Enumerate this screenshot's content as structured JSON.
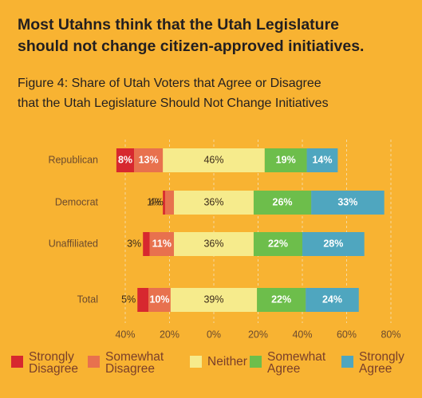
{
  "chart_data": {
    "type": "diverging-bar",
    "title": "Most Utahns think that the Utah Legislature should not change citizen-approved initiatives.",
    "subtitle": "Figure 4: Share of Utah Voters that Agree or Disagree that the Utah Legislature Should Not Change Initiatives",
    "categories": [
      "Republican",
      "Democrat",
      "Unaffiliated",
      "Total"
    ],
    "series": [
      {
        "name": "Strongly Disagree",
        "color": "#d7282f",
        "values": [
          8,
          1,
          3,
          5
        ],
        "value_labels": [
          "8%",
          "1%",
          "3%",
          "5%"
        ]
      },
      {
        "name": "Somewhat Disagree",
        "color": "#e8714e",
        "values": [
          13,
          4,
          11,
          10
        ],
        "value_labels": [
          "13%",
          "4%",
          "11%",
          "10%"
        ]
      },
      {
        "name": "Neither",
        "color": "#f6eb8c",
        "values": [
          46,
          36,
          36,
          39
        ],
        "value_labels": [
          "46%",
          "36%",
          "36%",
          "39%"
        ]
      },
      {
        "name": "Somewhat Agree",
        "color": "#6dbe4b",
        "values": [
          19,
          26,
          22,
          22
        ],
        "value_labels": [
          "19%",
          "26%",
          "22%",
          "22%"
        ]
      },
      {
        "name": "Strongly Agree",
        "color": "#4fa6bf",
        "values": [
          14,
          33,
          28,
          24
        ],
        "value_labels": [
          "14%",
          "33%",
          "28%",
          "24%"
        ]
      }
    ],
    "xlim": [
      -40,
      80
    ],
    "xticks": [
      {
        "value": -40,
        "label": "40%"
      },
      {
        "value": -20,
        "label": "20%"
      },
      {
        "value": 0,
        "label": "0%"
      },
      {
        "value": 20,
        "label": "20%"
      },
      {
        "value": 40,
        "label": "40%"
      },
      {
        "value": 60,
        "label": "60%"
      },
      {
        "value": 80,
        "label": "80%"
      }
    ],
    "grid": true
  }
}
